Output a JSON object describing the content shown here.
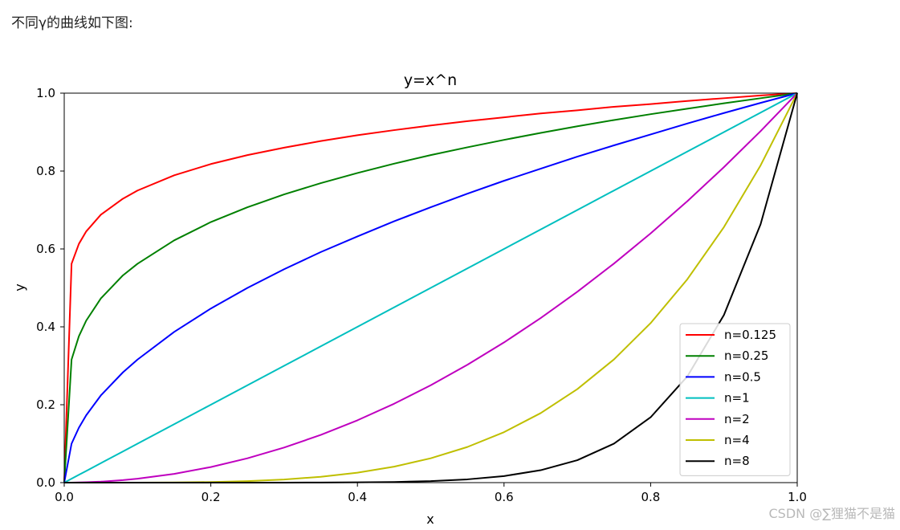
{
  "intro_text": "不同γ的曲线如下图:",
  "watermark": "CSDN @∑狸猫不是猫",
  "chart_data": {
    "type": "line",
    "title": "y=x^n",
    "xlabel": "x",
    "ylabel": "y",
    "xlim": [
      0,
      1
    ],
    "ylim": [
      0,
      1
    ],
    "xticks": [
      "0.0",
      "0.2",
      "0.4",
      "0.6",
      "0.8",
      "1.0"
    ],
    "yticks": [
      "0.0",
      "0.2",
      "0.4",
      "0.6",
      "0.8",
      "1.0"
    ],
    "grid": false,
    "legend_position": "lower-right",
    "function": "y = x^n",
    "x": [
      0,
      0.01,
      0.02,
      0.03,
      0.05,
      0.08,
      0.1,
      0.15,
      0.2,
      0.25,
      0.3,
      0.35,
      0.4,
      0.45,
      0.5,
      0.55,
      0.6,
      0.65,
      0.7,
      0.75,
      0.8,
      0.85,
      0.9,
      0.95,
      1.0
    ],
    "series": [
      {
        "name": "n=0.125",
        "n": 0.125,
        "color": "#ff0000",
        "values": [
          0,
          0.562,
          0.613,
          0.645,
          0.688,
          0.729,
          0.75,
          0.789,
          0.818,
          0.841,
          0.86,
          0.877,
          0.892,
          0.905,
          0.917,
          0.928,
          0.938,
          0.948,
          0.956,
          0.965,
          0.972,
          0.98,
          0.987,
          0.994,
          1.0
        ]
      },
      {
        "name": "n=0.25",
        "n": 0.25,
        "color": "#008000",
        "values": [
          0,
          0.316,
          0.376,
          0.416,
          0.473,
          0.532,
          0.562,
          0.622,
          0.669,
          0.707,
          0.74,
          0.769,
          0.795,
          0.819,
          0.841,
          0.861,
          0.88,
          0.898,
          0.915,
          0.931,
          0.946,
          0.96,
          0.974,
          0.987,
          1.0
        ]
      },
      {
        "name": "n=0.5",
        "n": 0.5,
        "color": "#0000ff",
        "values": [
          0,
          0.1,
          0.141,
          0.173,
          0.224,
          0.283,
          0.316,
          0.387,
          0.447,
          0.5,
          0.548,
          0.592,
          0.632,
          0.671,
          0.707,
          0.742,
          0.775,
          0.806,
          0.837,
          0.866,
          0.894,
          0.922,
          0.949,
          0.975,
          1.0
        ]
      },
      {
        "name": "n=1",
        "n": 1,
        "color": "#00bfbf",
        "values": [
          0,
          0.01,
          0.02,
          0.03,
          0.05,
          0.08,
          0.1,
          0.15,
          0.2,
          0.25,
          0.3,
          0.35,
          0.4,
          0.45,
          0.5,
          0.55,
          0.6,
          0.65,
          0.7,
          0.75,
          0.8,
          0.85,
          0.9,
          0.95,
          1.0
        ]
      },
      {
        "name": "n=2",
        "n": 2,
        "color": "#bf00bf",
        "values": [
          0,
          0.0001,
          0.0004,
          0.0009,
          0.0025,
          0.0064,
          0.01,
          0.0225,
          0.04,
          0.0625,
          0.09,
          0.1225,
          0.16,
          0.2025,
          0.25,
          0.3025,
          0.36,
          0.4225,
          0.49,
          0.5625,
          0.64,
          0.7225,
          0.81,
          0.9025,
          1.0
        ]
      },
      {
        "name": "n=4",
        "n": 4,
        "color": "#bfbf00",
        "values": [
          0,
          0,
          0,
          0,
          6.3e-06,
          4.1e-05,
          0.0001,
          0.0005,
          0.0016,
          0.0039,
          0.0081,
          0.015,
          0.0256,
          0.041,
          0.0625,
          0.0915,
          0.1296,
          0.1785,
          0.2401,
          0.3164,
          0.4096,
          0.522,
          0.6561,
          0.8145,
          1.0
        ]
      },
      {
        "name": "n=8",
        "n": 8,
        "color": "#000000",
        "values": [
          0,
          0,
          0,
          0,
          0,
          0,
          0,
          0,
          2.6e-06,
          1.53e-05,
          6.56e-05,
          0.000225,
          0.000655,
          0.00168,
          0.00391,
          0.00837,
          0.0168,
          0.0319,
          0.0576,
          0.1001,
          0.1678,
          0.2725,
          0.4305,
          0.6634,
          1.0
        ]
      }
    ]
  }
}
